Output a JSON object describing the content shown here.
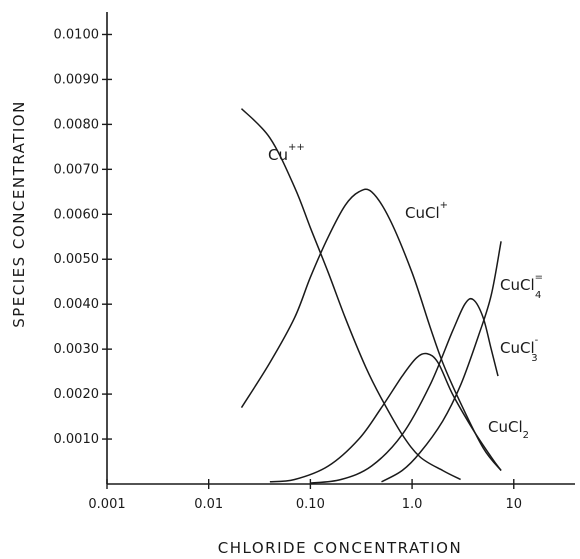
{
  "chart_data": {
    "type": "line",
    "title": "",
    "xlabel": "CHLORIDE CONCENTRATION",
    "ylabel": "SPECIES CONCENTRATION",
    "x_scale": "log",
    "xlim": [
      0.001,
      40
    ],
    "ylim": [
      0,
      0.0105
    ],
    "grid": false,
    "x_ticks": [
      {
        "value": 0.001,
        "label": "0.001"
      },
      {
        "value": 0.01,
        "label": "0.01"
      },
      {
        "value": 0.1,
        "label": "0.10"
      },
      {
        "value": 1,
        "label": "1.0"
      },
      {
        "value": 10,
        "label": "10"
      }
    ],
    "y_ticks": [
      {
        "value": 0.001,
        "label": "0.0010"
      },
      {
        "value": 0.002,
        "label": "0.0020"
      },
      {
        "value": 0.003,
        "label": "0.0030"
      },
      {
        "value": 0.004,
        "label": "0.0040"
      },
      {
        "value": 0.005,
        "label": "0.0050"
      },
      {
        "value": 0.006,
        "label": "0.0060"
      },
      {
        "value": 0.007,
        "label": "0.0070"
      },
      {
        "value": 0.008,
        "label": "0.0080"
      },
      {
        "value": 0.009,
        "label": "0.0090"
      },
      {
        "value": 0.01,
        "label": "0.0100"
      }
    ],
    "series": [
      {
        "name": "Cu",
        "superscript": "++",
        "subscript": "",
        "points": [
          [
            0.021,
            0.00835
          ],
          [
            0.04,
            0.0077
          ],
          [
            0.07,
            0.0066
          ],
          [
            0.1,
            0.0057
          ],
          [
            0.15,
            0.0047
          ],
          [
            0.22,
            0.0037
          ],
          [
            0.35,
            0.0026
          ],
          [
            0.5,
            0.0019
          ],
          [
            0.8,
            0.0011
          ],
          [
            1.2,
            0.0006
          ],
          [
            2.0,
            0.0003
          ],
          [
            3.0,
            0.0001
          ]
        ]
      },
      {
        "name": "CuCl",
        "superscript": "+",
        "subscript": "",
        "points": [
          [
            0.021,
            0.0017
          ],
          [
            0.04,
            0.0027
          ],
          [
            0.07,
            0.0037
          ],
          [
            0.1,
            0.0046
          ],
          [
            0.15,
            0.0055
          ],
          [
            0.22,
            0.0062
          ],
          [
            0.3,
            0.0065
          ],
          [
            0.4,
            0.0065
          ],
          [
            0.6,
            0.0059
          ],
          [
            1.0,
            0.0047
          ],
          [
            1.5,
            0.0035
          ],
          [
            2.0,
            0.0027
          ],
          [
            3.0,
            0.0018
          ],
          [
            5.0,
            0.0008
          ],
          [
            7.5,
            0.0003
          ]
        ]
      },
      {
        "name": "CuCl",
        "superscript": "",
        "subscript": "2",
        "points": [
          [
            0.04,
            5e-05
          ],
          [
            0.07,
            0.0001
          ],
          [
            0.15,
            0.0004
          ],
          [
            0.3,
            0.001
          ],
          [
            0.5,
            0.0017
          ],
          [
            0.8,
            0.0024
          ],
          [
            1.1,
            0.0028
          ],
          [
            1.4,
            0.0029
          ],
          [
            1.8,
            0.0027
          ],
          [
            2.5,
            0.002
          ],
          [
            4.0,
            0.0012
          ],
          [
            6.0,
            0.0006
          ],
          [
            7.5,
            0.0003
          ]
        ]
      },
      {
        "name": "CuCl",
        "superscript": "-",
        "subscript": "3",
        "points": [
          [
            0.1,
            2e-05
          ],
          [
            0.2,
            0.0001
          ],
          [
            0.4,
            0.0004
          ],
          [
            0.8,
            0.0011
          ],
          [
            1.5,
            0.0022
          ],
          [
            2.5,
            0.0034
          ],
          [
            3.3,
            0.004
          ],
          [
            4.0,
            0.0041
          ],
          [
            5.0,
            0.0037
          ],
          [
            6.0,
            0.003
          ],
          [
            7.0,
            0.0024
          ]
        ]
      },
      {
        "name": "CuCl",
        "superscript": "=",
        "subscript": "4",
        "points": [
          [
            0.5,
            5e-05
          ],
          [
            0.8,
            0.0003
          ],
          [
            1.2,
            0.0007
          ],
          [
            2.0,
            0.0014
          ],
          [
            3.0,
            0.0022
          ],
          [
            4.5,
            0.0033
          ],
          [
            6.0,
            0.0042
          ],
          [
            7.5,
            0.0054
          ]
        ]
      }
    ]
  }
}
